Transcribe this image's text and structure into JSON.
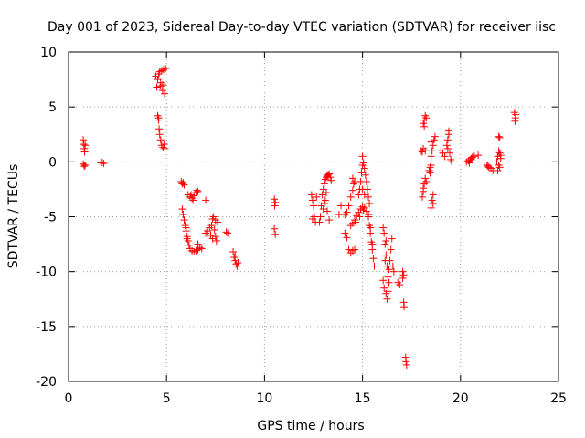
{
  "chart_data": {
    "type": "scatter",
    "title": "Day 001 of 2023, Sidereal Day-to-day VTEC variation (SDTVAR) for receiver iisc",
    "xlabel": "GPS time / hours",
    "ylabel": "SDTVAR / TECUs",
    "xlim": [
      0,
      25
    ],
    "ylim": [
      -20,
      10
    ],
    "xticks": [
      0,
      5,
      10,
      15,
      20,
      25
    ],
    "yticks": [
      -20,
      -15,
      -10,
      -5,
      0,
      5,
      10
    ],
    "xtick_labels": [
      "0",
      "5",
      "10",
      "15",
      "20",
      "25"
    ],
    "ytick_labels": [
      "-20",
      "-15",
      "-10",
      "-5",
      "0",
      "5",
      "10"
    ],
    "grid": true,
    "marker": "plus",
    "color": "#ff0000",
    "series": [
      {
        "name": "SDTVAR",
        "segments": [
          [
            [
              0.75,
              2.0
            ],
            [
              0.78,
              1.6
            ],
            [
              0.8,
              1.2
            ],
            [
              0.82,
              0.9
            ],
            [
              0.85,
              1.5
            ],
            [
              0.75,
              -0.2
            ],
            [
              0.8,
              -0.4
            ],
            [
              0.85,
              -0.3
            ]
          ],
          [
            [
              1.65,
              -0.1
            ],
            [
              1.72,
              -0.05
            ],
            [
              1.8,
              -0.15
            ]
          ],
          [
            [
              4.45,
              7.8
            ],
            [
              4.5,
              6.8
            ],
            [
              4.55,
              7.5
            ],
            [
              4.6,
              8.0
            ],
            [
              4.65,
              8.2
            ],
            [
              4.7,
              7.2
            ],
            [
              4.75,
              8.3
            ],
            [
              4.8,
              6.5
            ],
            [
              4.85,
              8.4
            ],
            [
              4.9,
              6.2
            ],
            [
              4.95,
              8.5
            ],
            [
              4.8,
              7.0
            ],
            [
              4.7,
              6.9
            ]
          ],
          [
            [
              4.55,
              4.2
            ],
            [
              4.6,
              3.8
            ],
            [
              4.62,
              3.0
            ],
            [
              4.65,
              2.5
            ],
            [
              4.7,
              2.0
            ],
            [
              4.75,
              1.5
            ],
            [
              4.82,
              1.3
            ],
            [
              4.88,
              1.6
            ],
            [
              4.92,
              1.2
            ],
            [
              4.6,
              4.0
            ]
          ],
          [
            [
              5.75,
              -1.8
            ],
            [
              5.8,
              -2.0
            ],
            [
              5.9,
              -2.1
            ],
            [
              5.85,
              -1.9
            ]
          ],
          [
            [
              5.8,
              -4.3
            ],
            [
              5.85,
              -4.8
            ],
            [
              5.9,
              -5.3
            ],
            [
              5.95,
              -5.8
            ],
            [
              6.0,
              -6.3
            ],
            [
              6.05,
              -6.8
            ],
            [
              6.1,
              -7.2
            ],
            [
              6.15,
              -7.6
            ],
            [
              6.2,
              -7.9
            ],
            [
              6.3,
              -8.1
            ],
            [
              6.4,
              -8.2
            ],
            [
              6.5,
              -8.1
            ],
            [
              6.6,
              -8.0
            ],
            [
              6.7,
              -7.8
            ],
            [
              6.8,
              -7.9
            ],
            [
              6.6,
              -7.5
            ],
            [
              6.05,
              -7.0
            ],
            [
              6.0,
              -6.0
            ]
          ],
          [
            [
              6.1,
              -3.0
            ],
            [
              6.2,
              -3.2
            ],
            [
              6.3,
              -3.3
            ],
            [
              6.4,
              -3.1
            ],
            [
              6.5,
              -2.8
            ],
            [
              6.55,
              -2.6
            ],
            [
              6.6,
              -2.7
            ],
            [
              6.35,
              -3.5
            ],
            [
              6.25,
              -3.0
            ]
          ],
          [
            [
              7.0,
              -3.5
            ]
          ],
          [
            [
              7.0,
              -6.5
            ],
            [
              7.1,
              -6.3
            ],
            [
              7.2,
              -6.0
            ],
            [
              7.3,
              -5.8
            ],
            [
              7.35,
              -5.2
            ],
            [
              7.4,
              -5.0
            ],
            [
              7.45,
              -6.2
            ],
            [
              7.5,
              -6.8
            ],
            [
              7.55,
              -7.2
            ],
            [
              7.6,
              -5.5
            ],
            [
              7.25,
              -6.7
            ],
            [
              7.35,
              -7.0
            ],
            [
              7.5,
              -5.3
            ]
          ],
          [
            [
              8.05,
              -6.4
            ],
            [
              8.12,
              -6.5
            ]
          ],
          [
            [
              8.4,
              -8.2
            ],
            [
              8.45,
              -8.7
            ],
            [
              8.5,
              -9.0
            ],
            [
              8.55,
              -9.3
            ],
            [
              8.6,
              -9.5
            ],
            [
              8.65,
              -9.2
            ],
            [
              8.5,
              -8.5
            ]
          ],
          [
            [
              10.5,
              -3.4
            ],
            [
              10.55,
              -3.7
            ],
            [
              10.52,
              -4.0
            ],
            [
              10.5,
              -6.1
            ],
            [
              10.55,
              -6.6
            ]
          ],
          [
            [
              12.4,
              -3.0
            ],
            [
              12.45,
              -3.5
            ],
            [
              12.5,
              -4.0
            ],
            [
              12.55,
              -5.0
            ],
            [
              12.6,
              -5.5
            ],
            [
              12.45,
              -5.2
            ],
            [
              12.65,
              -3.2
            ]
          ],
          [
            [
              12.8,
              -5.5
            ],
            [
              12.85,
              -5.0
            ],
            [
              12.9,
              -4.0
            ],
            [
              12.95,
              -3.0
            ],
            [
              13.0,
              -2.5
            ],
            [
              13.05,
              -2.0
            ],
            [
              13.1,
              -1.6
            ],
            [
              13.15,
              -1.4
            ],
            [
              13.2,
              -1.3
            ],
            [
              13.25,
              -1.2
            ],
            [
              13.3,
              -1.1
            ],
            [
              13.35,
              -1.4
            ],
            [
              13.4,
              -1.7
            ],
            [
              13.1,
              -3.5
            ],
            [
              13.2,
              -4.5
            ],
            [
              13.3,
              -5.3
            ],
            [
              13.0,
              -4.3
            ],
            [
              13.05,
              -3.8
            ],
            [
              13.15,
              -2.8
            ]
          ],
          [
            [
              13.8,
              -4.8
            ],
            [
              13.9,
              -4.0
            ]
          ],
          [
            [
              14.1,
              -4.8
            ],
            [
              14.2,
              -4.6
            ],
            [
              14.3,
              -4.0
            ],
            [
              14.4,
              -3.2
            ],
            [
              14.5,
              -2.6
            ],
            [
              14.55,
              -2.0
            ],
            [
              14.6,
              -1.8
            ],
            [
              14.5,
              -1.5
            ],
            [
              14.1,
              -6.5
            ],
            [
              14.2,
              -6.9
            ],
            [
              14.3,
              -8.0
            ],
            [
              14.4,
              -8.3
            ],
            [
              14.5,
              -8.1
            ],
            [
              14.6,
              -8.0
            ]
          ],
          [
            [
              14.4,
              -5.8
            ],
            [
              14.5,
              -5.6
            ],
            [
              14.6,
              -5.3
            ],
            [
              14.7,
              -4.9
            ],
            [
              14.8,
              -4.6
            ],
            [
              14.9,
              -4.3
            ],
            [
              15.0,
              -4.1
            ],
            [
              15.1,
              -4.2
            ],
            [
              15.2,
              -4.5
            ],
            [
              15.3,
              -4.8
            ],
            [
              14.65,
              -5.5
            ],
            [
              14.85,
              -5.0
            ],
            [
              15.05,
              -4.4
            ]
          ],
          [
            [
              14.8,
              -3.0
            ],
            [
              14.85,
              -2.5
            ],
            [
              14.9,
              -1.8
            ],
            [
              14.95,
              -1.0
            ],
            [
              15.0,
              -0.3
            ],
            [
              15.0,
              0.5
            ],
            [
              15.05,
              -0.1
            ],
            [
              15.1,
              -0.6
            ],
            [
              15.15,
              -1.2
            ],
            [
              15.2,
              -1.8
            ],
            [
              15.25,
              -2.5
            ],
            [
              15.3,
              -3.2
            ],
            [
              15.35,
              -3.8
            ],
            [
              15.0,
              -2.5
            ],
            [
              15.1,
              -3.0
            ]
          ],
          [
            [
              15.3,
              -5.0
            ],
            [
              15.35,
              -5.8
            ],
            [
              15.4,
              -6.5
            ],
            [
              15.45,
              -7.3
            ],
            [
              15.5,
              -8.0
            ],
            [
              15.55,
              -8.8
            ],
            [
              15.6,
              -9.5
            ],
            [
              15.4,
              -6.0
            ],
            [
              15.5,
              -7.5
            ]
          ],
          [
            [
              16.05,
              -6.0
            ],
            [
              16.1,
              -6.5
            ],
            [
              16.15,
              -7.5
            ],
            [
              16.2,
              -8.5
            ],
            [
              16.25,
              -9.5
            ],
            [
              16.3,
              -10.5
            ],
            [
              16.1,
              -11.5
            ],
            [
              16.2,
              -12.0
            ],
            [
              16.25,
              -12.5
            ],
            [
              16.3,
              -11.8
            ],
            [
              16.35,
              -9.8
            ],
            [
              16.4,
              -9.0
            ],
            [
              16.45,
              -8.0
            ],
            [
              16.5,
              -7.0
            ],
            [
              16.55,
              -9.5
            ],
            [
              16.6,
              -10.0
            ],
            [
              16.05,
              -10.8
            ],
            [
              16.15,
              -9.0
            ],
            [
              16.2,
              -7.2
            ],
            [
              16.35,
              -11.0
            ]
          ],
          [
            [
              16.8,
              -11.0
            ],
            [
              16.9,
              -11.2
            ]
          ],
          [
            [
              17.05,
              -10.0
            ],
            [
              17.1,
              -10.3
            ],
            [
              17.05,
              -10.6
            ],
            [
              17.1,
              -12.8
            ],
            [
              17.12,
              -13.2
            ],
            [
              17.2,
              -17.8
            ],
            [
              17.22,
              -18.2
            ],
            [
              17.25,
              -18.5
            ]
          ],
          [
            [
              18.05,
              -3.2
            ],
            [
              18.1,
              -2.7
            ],
            [
              18.15,
              -2.0
            ],
            [
              18.2,
              -1.5
            ],
            [
              18.25,
              -1.8
            ],
            [
              18.1,
              -2.4
            ]
          ],
          [
            [
              18.1,
              3.5
            ],
            [
              18.15,
              3.8
            ],
            [
              18.2,
              4.2
            ],
            [
              18.25,
              4.0
            ],
            [
              18.15,
              3.2
            ]
          ],
          [
            [
              18.0,
              1.0
            ],
            [
              18.05,
              0.9
            ],
            [
              18.1,
              1.2
            ],
            [
              18.2,
              1.0
            ]
          ],
          [
            [
              18.4,
              -0.8
            ],
            [
              18.45,
              -0.5
            ],
            [
              18.5,
              0.5
            ],
            [
              18.55,
              1.0
            ],
            [
              18.6,
              1.5
            ],
            [
              18.65,
              2.0
            ],
            [
              18.7,
              2.3
            ],
            [
              18.5,
              1.8
            ],
            [
              18.45,
              -1.0
            ],
            [
              18.5,
              -0.3
            ],
            [
              18.55,
              -3.5
            ],
            [
              18.6,
              -3.8
            ],
            [
              18.5,
              -4.2
            ],
            [
              18.6,
              -3.0
            ]
          ],
          [
            [
              19.0,
              1.0
            ],
            [
              19.1,
              0.8
            ],
            [
              19.2,
              0.5
            ],
            [
              19.3,
              1.5
            ],
            [
              19.35,
              2.0
            ],
            [
              19.4,
              2.5
            ],
            [
              19.35,
              1.2
            ],
            [
              19.45,
              0.8
            ],
            [
              19.5,
              0.2
            ],
            [
              19.55,
              0.0
            ],
            [
              19.4,
              2.8
            ]
          ],
          [
            [
              20.3,
              0.0
            ],
            [
              20.4,
              0.1
            ],
            [
              20.5,
              0.2
            ],
            [
              20.6,
              0.4
            ],
            [
              20.7,
              0.5
            ],
            [
              20.9,
              0.6
            ],
            [
              20.45,
              -0.1
            ],
            [
              20.55,
              0.3
            ]
          ],
          [
            [
              21.35,
              -0.3
            ],
            [
              21.45,
              -0.5
            ],
            [
              21.55,
              -0.6
            ],
            [
              21.65,
              -0.8
            ],
            [
              21.4,
              -0.4
            ]
          ],
          [
            [
              21.85,
              0.0
            ],
            [
              21.9,
              0.5
            ],
            [
              21.95,
              1.0
            ],
            [
              22.0,
              0.8
            ],
            [
              22.05,
              0.3
            ],
            [
              21.95,
              -0.3
            ],
            [
              22.0,
              -0.5
            ],
            [
              21.9,
              -0.8
            ],
            [
              21.95,
              2.3
            ],
            [
              22.0,
              2.2
            ],
            [
              22.05,
              0.6
            ]
          ],
          [
            [
              22.75,
              4.5
            ],
            [
              22.8,
              4.0
            ],
            [
              22.78,
              3.7
            ],
            [
              22.82,
              4.3
            ]
          ]
        ]
      }
    ]
  }
}
